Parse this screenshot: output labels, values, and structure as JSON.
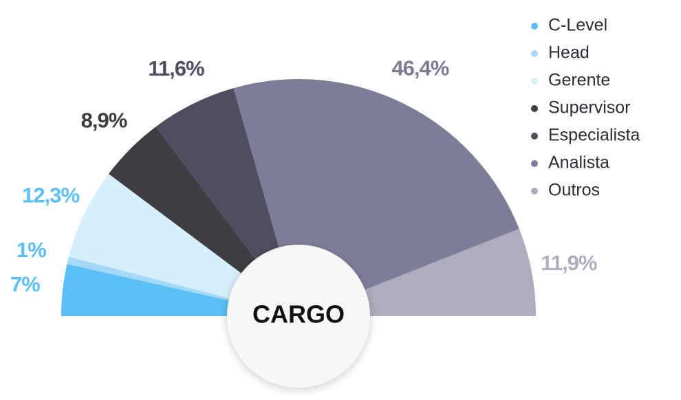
{
  "chart_data": {
    "type": "half-pie",
    "center_label": "CARGO",
    "categories": [
      "C-Level",
      "Head",
      "Gerente",
      "Supervisor",
      "Especialista",
      "Analista",
      "Outros"
    ],
    "values": [
      7,
      1,
      12.3,
      8.9,
      11.6,
      46.4,
      11.9
    ],
    "value_labels": [
      "7%",
      "1%",
      "12,3%",
      "8,9%",
      "11,6%",
      "46,4%",
      "11,9%"
    ],
    "colors": [
      "#5bbff5",
      "#a3d9f7",
      "#d6effc",
      "#3e3e42",
      "#4f4e60",
      "#7e7d97",
      "#aeadbf"
    ],
    "value_label_colors": [
      "#5bbff5",
      "#5bbff5",
      "#5bbff5",
      "#3e3e42",
      "#4f4e60",
      "#7e7d97",
      "#aeadbf"
    ],
    "legend": "top-right"
  }
}
